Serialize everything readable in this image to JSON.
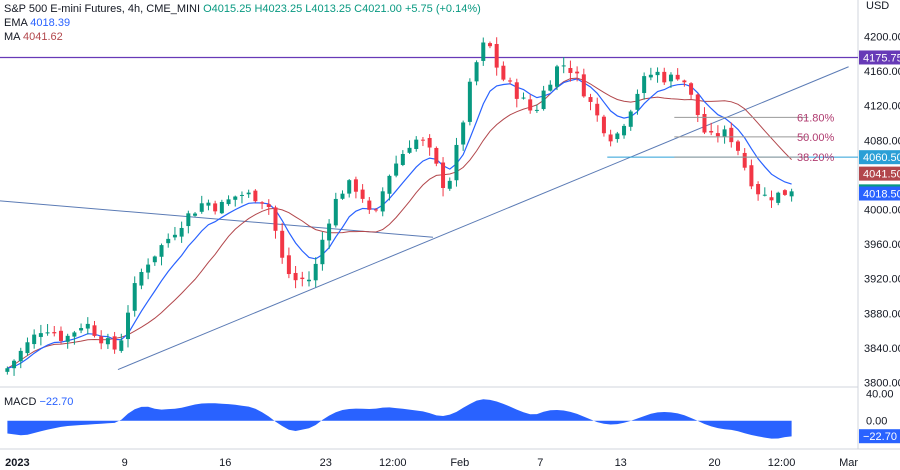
{
  "header": {
    "symbol": "S&P 500 E-mini Futures, 4h, CME_MINI",
    "ohlc": "O4015.25 H4023.25 L4013.25 C4021.00 +5.75 (+0.14%)",
    "ema_label": "EMA",
    "ema_value": "4018.39",
    "ma_label": "MA",
    "ma_value": "4041.62"
  },
  "macd": {
    "label": "MACD",
    "value": "−22.70"
  },
  "currency": "USD",
  "colors": {
    "up": "#089981",
    "down": "#f23645",
    "ema": "#2962ff",
    "ma": "#b2474c",
    "resistance": "#673ab7",
    "trend": "#5b7bb5",
    "macd": "#2962ff",
    "fib": "#b03a6f"
  },
  "chart_data": {
    "type": "candlestick",
    "y_ticks": [
      "4200.00",
      "4160.00",
      "4120.00",
      "4080.00",
      "4040.00",
      "4000.00",
      "3960.00",
      "3920.00",
      "3880.00",
      "3840.00",
      "3800.00"
    ],
    "y_tick_values": [
      4200,
      4160,
      4120,
      4080,
      4040,
      4000,
      3960,
      3920,
      3880,
      3840,
      3800
    ],
    "ylim": [
      3796,
      4226
    ],
    "x_ticks": [
      {
        "label": "2023",
        "bold": true,
        "t": 2
      },
      {
        "label": "9",
        "t": 18
      },
      {
        "label": "16",
        "t": 33
      },
      {
        "label": "23",
        "t": 48
      },
      {
        "label": "12:00",
        "t": 58
      },
      {
        "label": "Feb",
        "t": 68
      },
      {
        "label": "7",
        "t": 80
      },
      {
        "label": "13",
        "t": 92
      },
      {
        "label": "20",
        "t": 106
      },
      {
        "label": "12:00",
        "t": 116
      },
      {
        "label": "Mar",
        "t": 126
      }
    ],
    "price_path": [
      [
        0,
        3812
      ],
      [
        3,
        3840
      ],
      [
        6,
        3866
      ],
      [
        9,
        3850
      ],
      [
        12,
        3870
      ],
      [
        15,
        3848
      ],
      [
        17,
        3836
      ],
      [
        19,
        3900
      ],
      [
        21,
        3936
      ],
      [
        24,
        3962
      ],
      [
        27,
        3990
      ],
      [
        30,
        4010
      ],
      [
        32,
        4002
      ],
      [
        35,
        4018
      ],
      [
        38,
        4015
      ],
      [
        40,
        4000
      ],
      [
        41,
        3950
      ],
      [
        43,
        3918
      ],
      [
        46,
        3920
      ],
      [
        48,
        3980
      ],
      [
        50,
        4020
      ],
      [
        52,
        4030
      ],
      [
        54,
        4010
      ],
      [
        55,
        3980
      ],
      [
        57,
        4035
      ],
      [
        59,
        4060
      ],
      [
        61,
        4082
      ],
      [
        63,
        4075
      ],
      [
        65,
        4040
      ],
      [
        66,
        4020
      ],
      [
        68,
        4085
      ],
      [
        70,
        4160
      ],
      [
        72,
        4198
      ],
      [
        74,
        4155
      ],
      [
        77,
        4130
      ],
      [
        79,
        4110
      ],
      [
        81,
        4145
      ],
      [
        83,
        4170
      ],
      [
        85,
        4160
      ],
      [
        87,
        4130
      ],
      [
        89,
        4100
      ],
      [
        91,
        4080
      ],
      [
        93,
        4110
      ],
      [
        95,
        4145
      ],
      [
        97,
        4160
      ],
      [
        99,
        4150
      ],
      [
        101,
        4158
      ],
      [
        103,
        4120
      ],
      [
        105,
        4080
      ],
      [
        107,
        4090
      ],
      [
        109,
        4080
      ],
      [
        111,
        4040
      ],
      [
        113,
        4015
      ],
      [
        115,
        4016
      ],
      [
        117,
        4021
      ]
    ],
    "candle_count": 118,
    "ema_value": 4018.39,
    "ma_value": 4041.62,
    "resistance": 4175.75,
    "trendline_upper": {
      "from": [
        0,
        4010
      ],
      "to": [
        64,
        3968
      ]
    },
    "trendline_rising": {
      "from": [
        17,
        3815
      ],
      "to": [
        126,
        4165
      ]
    },
    "fib_levels": [
      {
        "label": "61.80%",
        "value": 4106.5
      },
      {
        "label": "50.00%",
        "value": 4084
      },
      {
        "label": "38.20%",
        "value": 4060.5
      }
    ],
    "fib_range": [
      100,
      120
    ],
    "fib_support_line": {
      "from": [
        90,
        4060.5
      ],
      "to": [
        120,
        4060.5
      ]
    },
    "price_tags": [
      {
        "label": "4175.75",
        "value": 4175.75,
        "color": "#673ab7"
      },
      {
        "label": "4060.50",
        "value": 4060.5,
        "color": "#2a9fd6"
      },
      {
        "label": "4041.50",
        "value": 4041.5,
        "color": "#b2474c"
      },
      {
        "label": "4021.00",
        "value": 4021,
        "color": "#089981"
      },
      {
        "label": "4018.50",
        "value": 4018.5,
        "color": "#2962ff"
      }
    ],
    "macd_ticks": [
      {
        "label": "40.00",
        "value": 40
      },
      {
        "label": "0.00",
        "value": 0
      }
    ],
    "macd_tag": {
      "label": "−22.70",
      "value": -22.7
    },
    "macd_ylim": [
      -40,
      48
    ],
    "macd_path": [
      [
        0,
        -18
      ],
      [
        3,
        -22
      ],
      [
        6,
        -14
      ],
      [
        9,
        -8
      ],
      [
        12,
        -6
      ],
      [
        15,
        -4
      ],
      [
        17,
        -3
      ],
      [
        19,
        15
      ],
      [
        21,
        22
      ],
      [
        23,
        16
      ],
      [
        26,
        18
      ],
      [
        29,
        25
      ],
      [
        31,
        26
      ],
      [
        34,
        24
      ],
      [
        37,
        20
      ],
      [
        39,
        10
      ],
      [
        41,
        -5
      ],
      [
        43,
        -16
      ],
      [
        46,
        -10
      ],
      [
        48,
        5
      ],
      [
        50,
        15
      ],
      [
        52,
        18
      ],
      [
        55,
        17
      ],
      [
        57,
        20
      ],
      [
        60,
        17
      ],
      [
        63,
        13
      ],
      [
        65,
        6
      ],
      [
        67,
        10
      ],
      [
        69,
        22
      ],
      [
        71,
        32
      ],
      [
        73,
        30
      ],
      [
        75,
        23
      ],
      [
        77,
        14
      ],
      [
        79,
        8
      ],
      [
        81,
        15
      ],
      [
        83,
        16
      ],
      [
        85,
        12
      ],
      [
        87,
        4
      ],
      [
        89,
        -4
      ],
      [
        91,
        -6
      ],
      [
        93,
        -2
      ],
      [
        95,
        5
      ],
      [
        97,
        12
      ],
      [
        99,
        13
      ],
      [
        101,
        10
      ],
      [
        103,
        2
      ],
      [
        105,
        -7
      ],
      [
        107,
        -12
      ],
      [
        109,
        -14
      ],
      [
        111,
        -20
      ],
      [
        113,
        -24
      ],
      [
        115,
        -27
      ],
      [
        117,
        -23
      ]
    ]
  }
}
